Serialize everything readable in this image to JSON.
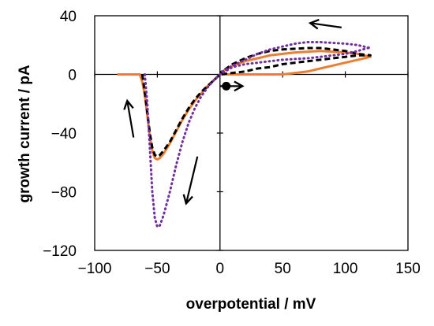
{
  "chart_data": {
    "type": "line",
    "title": "",
    "xlabel": "overpotential / mV",
    "ylabel": "growth current  / pA",
    "xlim": [
      -100,
      150
    ],
    "ylim": [
      -120,
      40
    ],
    "xticks": [
      -100,
      -50,
      0,
      50,
      100,
      150
    ],
    "yticks": [
      -120,
      -80,
      -40,
      0,
      40
    ],
    "xtick_labels": [
      "−100",
      "−50",
      "0",
      "50",
      "100",
      "150"
    ],
    "ytick_labels": [
      "−120",
      "−80",
      "−40",
      "0",
      "40"
    ],
    "grid": false,
    "legend": false,
    "start_marker": {
      "x": 5,
      "y": -8
    },
    "series": [
      {
        "color": "#ed7d31",
        "style": "solid",
        "x": [
          -82,
          -64,
          -62,
          -60,
          -58,
          -56,
          -54,
          -52,
          -50,
          -48,
          -45,
          -40,
          -35,
          -30,
          -25,
          -20,
          -15,
          -10,
          -5,
          0,
          10,
          20,
          30,
          40,
          50,
          60,
          70,
          80,
          90,
          100,
          110,
          120,
          110,
          100,
          90,
          80,
          70,
          60,
          50,
          40,
          30,
          20,
          10,
          0
        ],
        "y": [
          0,
          0,
          -5,
          -14,
          -28,
          -42,
          -52,
          -57,
          -58,
          -57,
          -54,
          -47,
          -39,
          -31,
          -24,
          -18,
          -13,
          -8,
          -4,
          0,
          0,
          0,
          0,
          0,
          0,
          1,
          2,
          4,
          6,
          8,
          10,
          12,
          14,
          15,
          15.5,
          16,
          15.5,
          15,
          14,
          13,
          11,
          9,
          6,
          1
        ]
      },
      {
        "color": "#000000",
        "style": "dashed",
        "x": [
          -62,
          -60,
          -58,
          -56,
          -54,
          -52,
          -50,
          -48,
          -45,
          -40,
          -35,
          -30,
          -25,
          -20,
          -15,
          -10,
          -5,
          0,
          10,
          20,
          30,
          40,
          50,
          60,
          70,
          80,
          90,
          100,
          110,
          120,
          110,
          100,
          90,
          80,
          70,
          60,
          50,
          40,
          30,
          20,
          10,
          0
        ],
        "y": [
          0,
          -12,
          -26,
          -40,
          -50,
          -55,
          -56,
          -55,
          -52,
          -46,
          -38,
          -30,
          -23,
          -17,
          -12,
          -8,
          -4,
          0,
          1,
          2,
          4,
          5,
          7,
          8,
          9,
          10,
          11,
          12,
          13,
          13,
          14,
          16,
          17,
          18,
          18,
          17.5,
          17,
          16,
          14,
          11,
          7,
          1
        ]
      },
      {
        "color": "#7030a0",
        "style": "dotted",
        "x": [
          -60,
          -58,
          -56,
          -54,
          -52,
          -50,
          -48,
          -45,
          -40,
          -35,
          -30,
          -25,
          -20,
          -15,
          -10,
          -5,
          0,
          10,
          20,
          30,
          40,
          50,
          60,
          70,
          80,
          90,
          100,
          110,
          118,
          120,
          110,
          100,
          90,
          80,
          70,
          60,
          50,
          40,
          30,
          20,
          10,
          0
        ],
        "y": [
          0,
          -20,
          -50,
          -80,
          -98,
          -104,
          -103,
          -96,
          -80,
          -62,
          -46,
          -33,
          -23,
          -15,
          -9,
          -4,
          0,
          5,
          7,
          8,
          9,
          10,
          10.5,
          11,
          12,
          13,
          14,
          16,
          18,
          18,
          20,
          21,
          21.5,
          22,
          22,
          21,
          19,
          17,
          14,
          10,
          6,
          1
        ]
      }
    ],
    "arrows": [
      {
        "from": [
          0,
          -8
        ],
        "to": [
          18,
          -8
        ]
      },
      {
        "from": [
          97,
          32
        ],
        "to": [
          72,
          35
        ]
      },
      {
        "from": [
          -69,
          -43
        ],
        "to": [
          -74,
          -18
        ]
      },
      {
        "from": [
          -18,
          -56
        ],
        "to": [
          -27,
          -88
        ]
      }
    ]
  }
}
